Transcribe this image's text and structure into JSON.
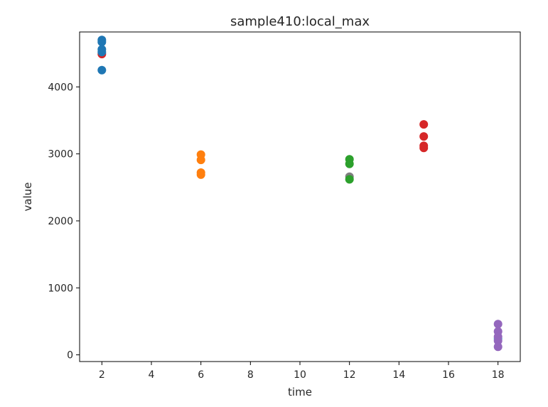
{
  "chart_data": {
    "type": "scatter",
    "title": "sample410:local_max",
    "xlabel": "time",
    "ylabel": "value",
    "xlim": [
      1.1,
      18.9
    ],
    "ylim": [
      -100,
      4820
    ],
    "xticks": [
      2,
      4,
      6,
      8,
      10,
      12,
      14,
      16,
      18
    ],
    "yticks": [
      0,
      1000,
      2000,
      3000,
      4000
    ],
    "grid": false,
    "series": [
      {
        "color": "#d62728",
        "points": [
          [
            2,
            4490
          ]
        ]
      },
      {
        "color": "#1f77b4",
        "points": [
          [
            2,
            4700
          ],
          [
            2,
            4670
          ],
          [
            2,
            4560
          ],
          [
            2,
            4520
          ],
          [
            2,
            4250
          ]
        ]
      },
      {
        "color": "#ff7f0e",
        "points": [
          [
            6,
            2990
          ],
          [
            6,
            2910
          ],
          [
            6,
            2720
          ],
          [
            6,
            2690
          ]
        ]
      },
      {
        "color": "#7f7f7f",
        "points": [
          [
            12,
            2660
          ]
        ]
      },
      {
        "color": "#2ca02c",
        "points": [
          [
            12,
            2920
          ],
          [
            12,
            2850
          ],
          [
            12,
            2620
          ]
        ]
      },
      {
        "color": "#d62728",
        "points": [
          [
            15,
            3440
          ],
          [
            15,
            3260
          ],
          [
            15,
            3120
          ],
          [
            15,
            3090
          ]
        ]
      },
      {
        "color": "#17becf",
        "points": [
          [
            18,
            240
          ]
        ]
      },
      {
        "color": "#9467bd",
        "points": [
          [
            18,
            460
          ],
          [
            18,
            350
          ],
          [
            18,
            270
          ],
          [
            18,
            210
          ],
          [
            18,
            120
          ]
        ]
      }
    ]
  }
}
